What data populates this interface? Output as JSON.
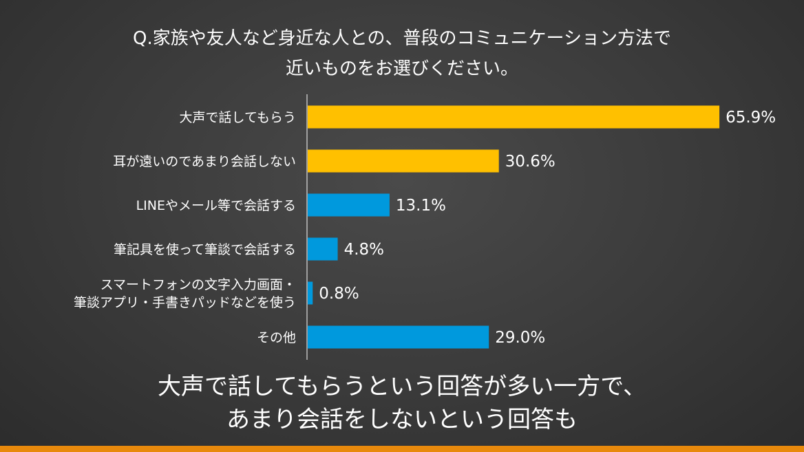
{
  "title": {
    "line1": "Q.家族や友人など身近な人との、普段のコミュニケーション方法で",
    "line2": "近いものをお選びください。"
  },
  "colors": {
    "highlight": "#FFC000",
    "normal": "#0099DD",
    "stripe": "#E8890C"
  },
  "chart_data": {
    "type": "bar",
    "orientation": "horizontal",
    "categories": [
      [
        "大声で話してもらう"
      ],
      [
        "耳が遠いのであまり会話しない"
      ],
      [
        "LINEやメール等で会話する"
      ],
      [
        "筆記具を使って筆談で会話する"
      ],
      [
        "スマートフォンの文字入力画面・",
        "筆談アプリ・手書きパッドなどを使う"
      ],
      [
        "その他"
      ]
    ],
    "values": [
      65.9,
      30.6,
      13.1,
      4.8,
      0.8,
      29.0
    ],
    "value_labels": [
      "65.9%",
      "30.6%",
      "13.1%",
      "4.8%",
      "0.8%",
      "29.0%"
    ],
    "highlight": [
      true,
      true,
      false,
      false,
      false,
      false
    ],
    "unit": "%",
    "xlim": [
      0,
      66
    ],
    "grid": false
  },
  "conclusion": {
    "line1": "大声で話してもらうという回答が多い一方で、",
    "line2": "あまり会話をしないという回答も"
  }
}
